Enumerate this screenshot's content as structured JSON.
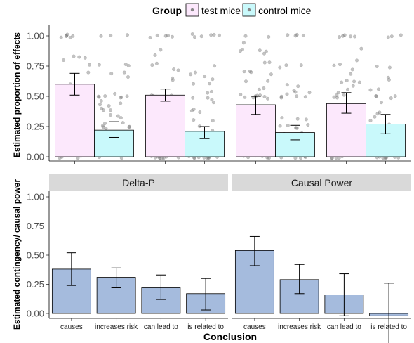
{
  "legend": {
    "title": "Group",
    "entries": [
      {
        "label": "test mice",
        "color": "#fce8fc"
      },
      {
        "label": "control mice",
        "color": "#c9f9fb"
      }
    ]
  },
  "chart_data": [
    {
      "type": "bar",
      "ylabel": "Estimated proportion of effects",
      "xlabel": "",
      "ylim": [
        0,
        1.05
      ],
      "yticks": [
        "0.00",
        "0.25",
        "0.50",
        "0.75",
        "1.00"
      ],
      "grid": false,
      "legend_position": "top",
      "categories": [
        "causes",
        "increases risk",
        "can lead to",
        "is related to"
      ],
      "series": [
        {
          "name": "test mice",
          "color": "#fce8fc",
          "values": [
            0.6,
            0.51,
            0.43,
            0.44
          ],
          "err_low": [
            0.51,
            0.46,
            0.35,
            0.36
          ],
          "err_high": [
            0.69,
            0.56,
            0.5,
            0.53
          ]
        },
        {
          "name": "control mice",
          "color": "#c9f9fb",
          "values": [
            0.22,
            0.21,
            0.2,
            0.27
          ],
          "err_low": [
            0.16,
            0.15,
            0.14,
            0.19
          ],
          "err_high": [
            0.29,
            0.25,
            0.26,
            0.35
          ]
        }
      ]
    },
    {
      "type": "bar",
      "ylabel": "Estimated contingency/ causal power",
      "xlabel": "Conclusion",
      "ylim": [
        -0.04,
        1.02
      ],
      "yticks": [
        "0.00",
        "0.25",
        "0.50",
        "0.75",
        "1.00"
      ],
      "grid": false,
      "bar_color": "#a5bbdd",
      "categories": [
        "causes",
        "increases risk",
        "can lead to",
        "is related to"
      ],
      "facets": [
        {
          "title": "Delta-P",
          "values": [
            0.38,
            0.31,
            0.22,
            0.17
          ],
          "err_low": [
            0.24,
            0.22,
            0.12,
            0.03
          ],
          "err_high": [
            0.52,
            0.39,
            0.33,
            0.3
          ]
        },
        {
          "title": "Causal Power",
          "values": [
            0.54,
            0.29,
            0.16,
            -0.02
          ],
          "err_low": [
            0.41,
            0.17,
            -0.02,
            -0.31
          ],
          "err_high": [
            0.66,
            0.42,
            0.34,
            0.26
          ]
        }
      ]
    }
  ]
}
